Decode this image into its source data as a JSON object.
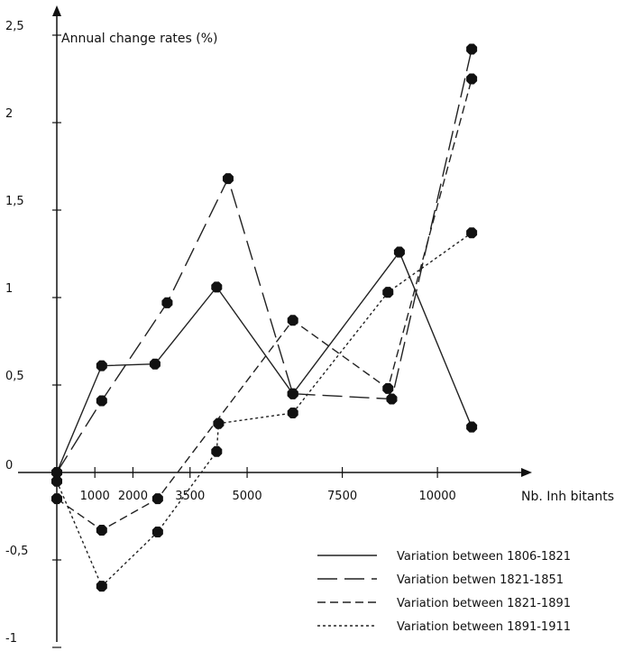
{
  "chart_data": {
    "type": "line",
    "ylabel": "Annual change rates (%)",
    "xlabel": "Nb. Inh bitants",
    "ylim": [
      -1,
      2.5
    ],
    "y_ticks": [
      {
        "value": 2.5,
        "label": "2,5"
      },
      {
        "value": 2,
        "label": "2"
      },
      {
        "value": 1.5,
        "label": "1,5"
      },
      {
        "value": 1,
        "label": "1"
      },
      {
        "value": 0.5,
        "label": "0,5"
      },
      {
        "value": 0,
        "label": "0"
      },
      {
        "value": -0.5,
        "label": "-0,5"
      },
      {
        "value": -1,
        "label": "-1"
      }
    ],
    "x_ticks": [
      {
        "value": 1000,
        "label": "1000"
      },
      {
        "value": 2000,
        "label": "2000"
      },
      {
        "value": 3500,
        "label": "3500"
      },
      {
        "value": 5000,
        "label": "5000"
      },
      {
        "value": 7500,
        "label": "7500"
      },
      {
        "value": 10000,
        "label": "10000"
      }
    ],
    "legend_position": "bottom-right",
    "series": [
      {
        "name": "Variation between 1806-1821",
        "style": "solid",
        "points": [
          [
            0,
            0
          ],
          [
            1180,
            0.61
          ],
          [
            2580,
            0.62
          ],
          [
            4200,
            1.06
          ],
          [
            6200,
            0.45
          ],
          [
            9000,
            1.26
          ],
          [
            10900,
            0.26
          ]
        ]
      },
      {
        "name": "Variation betwen 1821-1851",
        "style": "long-dash",
        "points": [
          [
            0,
            0
          ],
          [
            1180,
            0.41
          ],
          [
            2900,
            0.97
          ],
          [
            4500,
            1.68
          ],
          [
            6200,
            0.45
          ],
          [
            8800,
            0.42
          ],
          [
            10900,
            2.42
          ]
        ]
      },
      {
        "name": "Variation between 1821-1891",
        "style": "dash",
        "points": [
          [
            0,
            -0.15
          ],
          [
            1180,
            -0.33
          ],
          [
            2650,
            -0.15
          ],
          [
            6200,
            0.87
          ],
          [
            8700,
            0.48
          ],
          [
            10900,
            2.25
          ]
        ]
      },
      {
        "name": "Variation between 1891-1911",
        "style": "dot",
        "points": [
          [
            0,
            -0.05
          ],
          [
            1180,
            -0.65
          ],
          [
            2650,
            -0.34
          ],
          [
            4200,
            0.12
          ],
          [
            4250,
            0.28
          ],
          [
            6200,
            0.34
          ],
          [
            8700,
            1.03
          ],
          [
            10900,
            1.37
          ]
        ]
      }
    ]
  }
}
